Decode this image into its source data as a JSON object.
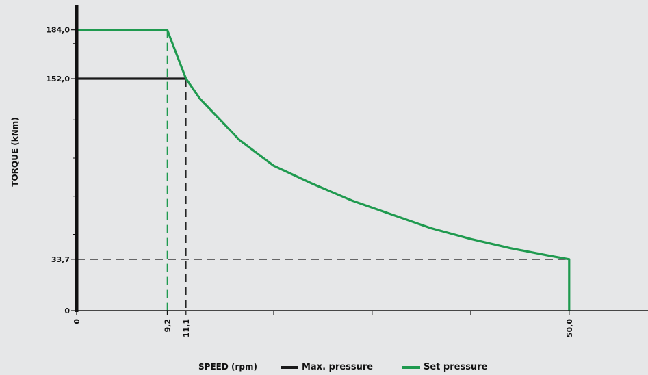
{
  "chart_data": {
    "type": "line",
    "xlabel": "SPEED (rpm)",
    "ylabel": "TORQUE (kNm)",
    "xlim": [
      0,
      58
    ],
    "ylim": [
      0,
      200
    ],
    "x_ticks": [
      {
        "value": 0,
        "label": "0"
      },
      {
        "value": 9.2,
        "label": "9,2"
      },
      {
        "value": 11.1,
        "label": "11,1"
      },
      {
        "value": 50.0,
        "label": "50,0"
      }
    ],
    "x_minor_ticks": [
      20,
      30,
      40
    ],
    "y_ticks": [
      {
        "value": 0,
        "label": "0"
      },
      {
        "value": 33.7,
        "label": "33,7"
      },
      {
        "value": 152.0,
        "label": "152,0"
      },
      {
        "value": 184.0,
        "label": "184,0"
      }
    ],
    "y_minor_ticks": [
      50,
      75,
      100,
      125,
      175
    ],
    "series": [
      {
        "name": "Max. pressure",
        "color": "#1a1a1a",
        "points": [
          [
            0,
            152.0
          ],
          [
            11.1,
            152.0
          ]
        ]
      },
      {
        "name": "Set pressure",
        "color": "#1f9a4f",
        "points": [
          [
            0,
            184.0
          ],
          [
            9.2,
            184.0
          ],
          [
            11.1,
            152.0
          ],
          [
            12.5,
            139
          ],
          [
            16.5,
            112
          ],
          [
            20,
            95
          ],
          [
            24,
            83
          ],
          [
            28,
            72
          ],
          [
            32,
            63
          ],
          [
            36,
            54
          ],
          [
            40,
            47
          ],
          [
            44,
            41
          ],
          [
            48,
            36
          ],
          [
            50.0,
            33.7
          ],
          [
            50.0,
            0
          ]
        ]
      }
    ],
    "reference_lines": [
      {
        "type": "vertical",
        "x": 9.2,
        "y_to": 184.0,
        "color": "#1f9a4f",
        "dashed": true
      },
      {
        "type": "vertical",
        "x": 11.1,
        "y_to": 152.0,
        "color": "#1a1a1a",
        "dashed": true
      },
      {
        "type": "horizontal",
        "y": 33.7,
        "x_to": 50.0,
        "color": "#1a1a1a",
        "dashed": true
      }
    ],
    "legend_position": "bottom"
  }
}
